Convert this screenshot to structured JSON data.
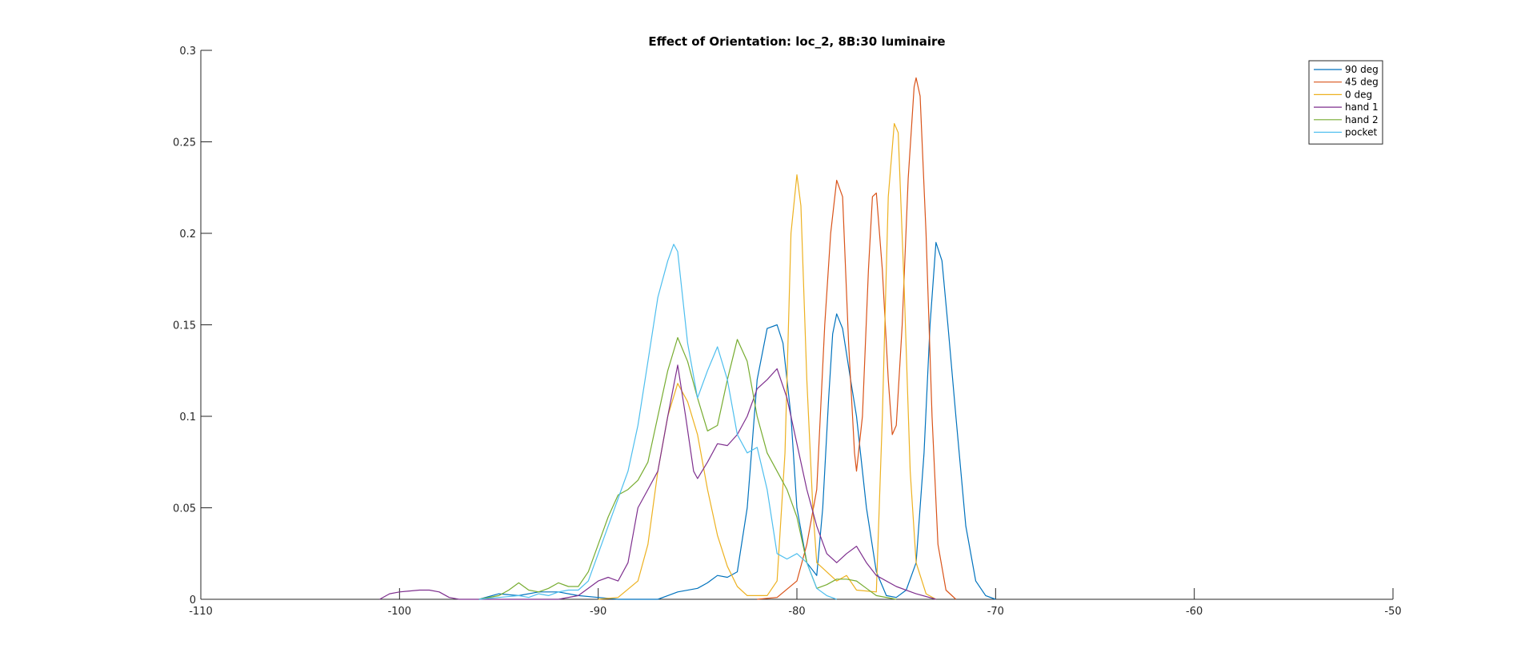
{
  "chart_data": {
    "type": "line",
    "title": "Effect of Orientation: loc_2, 8B:30 luminaire",
    "xlabel": "",
    "ylabel": "",
    "xlim": [
      -110,
      -50
    ],
    "ylim": [
      0,
      0.3
    ],
    "xticks": [
      -110,
      -100,
      -90,
      -80,
      -70,
      -60,
      -50
    ],
    "yticks": [
      0,
      0.05,
      0.1,
      0.15,
      0.2,
      0.25,
      0.3
    ],
    "xtick_labels": [
      "-110",
      "-100",
      "-90",
      "-80",
      "-70",
      "-60",
      "-50"
    ],
    "ytick_labels": [
      "0",
      "0.05",
      "0.1",
      "0.15",
      "0.2",
      "0.25",
      "0.3"
    ],
    "grid": false,
    "legend_position": "top-right",
    "series": [
      {
        "name": "90 deg",
        "color": "#0072BD",
        "points": [
          [
            -96,
            0
          ],
          [
            -95,
            0.003
          ],
          [
            -94,
            0.002
          ],
          [
            -93,
            0.004
          ],
          [
            -92,
            0.004
          ],
          [
            -91,
            0.002
          ],
          [
            -90,
            0.001
          ],
          [
            -89,
            0
          ],
          [
            -88,
            0
          ],
          [
            -87,
            0
          ],
          [
            -86.5,
            0.002
          ],
          [
            -86,
            0.004
          ],
          [
            -85,
            0.006
          ],
          [
            -84.5,
            0.009
          ],
          [
            -84,
            0.013
          ],
          [
            -83.5,
            0.012
          ],
          [
            -83,
            0.015
          ],
          [
            -82.5,
            0.05
          ],
          [
            -82,
            0.12
          ],
          [
            -81.5,
            0.148
          ],
          [
            -81,
            0.15
          ],
          [
            -80.7,
            0.14
          ],
          [
            -80.3,
            0.1
          ],
          [
            -80,
            0.05
          ],
          [
            -79.5,
            0.02
          ],
          [
            -79,
            0.013
          ],
          [
            -78.7,
            0.05
          ],
          [
            -78.4,
            0.11
          ],
          [
            -78.2,
            0.145
          ],
          [
            -78,
            0.156
          ],
          [
            -77.7,
            0.148
          ],
          [
            -77.3,
            0.12
          ],
          [
            -77,
            0.1
          ],
          [
            -76.5,
            0.05
          ],
          [
            -76,
            0.015
          ],
          [
            -75.5,
            0.002
          ],
          [
            -75,
            0.001
          ],
          [
            -74.5,
            0.005
          ],
          [
            -74,
            0.02
          ],
          [
            -73.6,
            0.08
          ],
          [
            -73.3,
            0.15
          ],
          [
            -73,
            0.195
          ],
          [
            -72.7,
            0.185
          ],
          [
            -72.4,
            0.15
          ],
          [
            -72,
            0.1
          ],
          [
            -71.5,
            0.04
          ],
          [
            -71,
            0.01
          ],
          [
            -70.5,
            0.002
          ],
          [
            -70,
            0
          ]
        ]
      },
      {
        "name": "45 deg",
        "color": "#D95319",
        "points": [
          [
            -82,
            0
          ],
          [
            -81,
            0.001
          ],
          [
            -80,
            0.01
          ],
          [
            -79.5,
            0.03
          ],
          [
            -79,
            0.06
          ],
          [
            -78.6,
            0.15
          ],
          [
            -78.3,
            0.2
          ],
          [
            -78,
            0.229
          ],
          [
            -77.7,
            0.22
          ],
          [
            -77.4,
            0.14
          ],
          [
            -77.1,
            0.08
          ],
          [
            -77,
            0.07
          ],
          [
            -76.7,
            0.1
          ],
          [
            -76.4,
            0.18
          ],
          [
            -76.2,
            0.22
          ],
          [
            -76,
            0.222
          ],
          [
            -75.7,
            0.18
          ],
          [
            -75.4,
            0.12
          ],
          [
            -75.2,
            0.09
          ],
          [
            -75,
            0.095
          ],
          [
            -74.7,
            0.15
          ],
          [
            -74.4,
            0.23
          ],
          [
            -74.1,
            0.28
          ],
          [
            -74,
            0.285
          ],
          [
            -73.8,
            0.275
          ],
          [
            -73.5,
            0.2
          ],
          [
            -73.2,
            0.1
          ],
          [
            -72.9,
            0.03
          ],
          [
            -72.5,
            0.005
          ],
          [
            -72,
            0
          ]
        ]
      },
      {
        "name": "0 deg",
        "color": "#EDB120",
        "points": [
          [
            -90,
            0
          ],
          [
            -89,
            0.001
          ],
          [
            -88,
            0.01
          ],
          [
            -87.5,
            0.03
          ],
          [
            -87,
            0.07
          ],
          [
            -86.5,
            0.1
          ],
          [
            -86,
            0.118
          ],
          [
            -85.5,
            0.108
          ],
          [
            -85,
            0.09
          ],
          [
            -84.5,
            0.06
          ],
          [
            -84,
            0.035
          ],
          [
            -83.5,
            0.018
          ],
          [
            -83,
            0.007
          ],
          [
            -82.5,
            0.002
          ],
          [
            -81.5,
            0.002
          ],
          [
            -81,
            0.01
          ],
          [
            -80.6,
            0.08
          ],
          [
            -80.3,
            0.2
          ],
          [
            -80,
            0.232
          ],
          [
            -79.8,
            0.215
          ],
          [
            -79.5,
            0.12
          ],
          [
            -79.2,
            0.05
          ],
          [
            -79,
            0.02
          ],
          [
            -78,
            0.01
          ],
          [
            -77.5,
            0.013
          ],
          [
            -77,
            0.005
          ],
          [
            -76,
            0.004
          ],
          [
            -75.7,
            0.1
          ],
          [
            -75.4,
            0.22
          ],
          [
            -75.1,
            0.26
          ],
          [
            -74.9,
            0.255
          ],
          [
            -74.6,
            0.17
          ],
          [
            -74.3,
            0.07
          ],
          [
            -74,
            0.02
          ],
          [
            -73.5,
            0.003
          ],
          [
            -73,
            0
          ]
        ]
      },
      {
        "name": "hand 1",
        "color": "#7E2F8E",
        "points": [
          [
            -101,
            0
          ],
          [
            -100.5,
            0.003
          ],
          [
            -100,
            0.004
          ],
          [
            -99,
            0.005
          ],
          [
            -98.5,
            0.005
          ],
          [
            -98,
            0.004
          ],
          [
            -97.5,
            0.001
          ],
          [
            -97,
            0
          ],
          [
            -92,
            0
          ],
          [
            -91,
            0.002
          ],
          [
            -90,
            0.01
          ],
          [
            -89.5,
            0.012
          ],
          [
            -89,
            0.01
          ],
          [
            -88.5,
            0.02
          ],
          [
            -88,
            0.05
          ],
          [
            -87.5,
            0.06
          ],
          [
            -87,
            0.07
          ],
          [
            -86.5,
            0.1
          ],
          [
            -86,
            0.128
          ],
          [
            -85.6,
            0.1
          ],
          [
            -85.2,
            0.07
          ],
          [
            -85,
            0.066
          ],
          [
            -84.5,
            0.075
          ],
          [
            -84,
            0.085
          ],
          [
            -83.5,
            0.084
          ],
          [
            -83,
            0.09
          ],
          [
            -82.5,
            0.1
          ],
          [
            -82,
            0.115
          ],
          [
            -81.5,
            0.12
          ],
          [
            -81,
            0.126
          ],
          [
            -80.5,
            0.11
          ],
          [
            -80,
            0.085
          ],
          [
            -79.5,
            0.06
          ],
          [
            -79,
            0.04
          ],
          [
            -78.5,
            0.025
          ],
          [
            -78,
            0.02
          ],
          [
            -77.5,
            0.025
          ],
          [
            -77,
            0.029
          ],
          [
            -76.5,
            0.02
          ],
          [
            -76,
            0.013
          ],
          [
            -75,
            0.007
          ],
          [
            -74,
            0.003
          ],
          [
            -73,
            0
          ]
        ]
      },
      {
        "name": "hand 2",
        "color": "#77AC30",
        "points": [
          [
            -96,
            0
          ],
          [
            -95,
            0.002
          ],
          [
            -94.5,
            0.005
          ],
          [
            -94,
            0.009
          ],
          [
            -93.5,
            0.005
          ],
          [
            -93,
            0.004
          ],
          [
            -92.5,
            0.006
          ],
          [
            -92,
            0.009
          ],
          [
            -91.5,
            0.007
          ],
          [
            -91,
            0.007
          ],
          [
            -90.5,
            0.015
          ],
          [
            -90,
            0.03
          ],
          [
            -89.5,
            0.045
          ],
          [
            -89,
            0.057
          ],
          [
            -88.5,
            0.06
          ],
          [
            -88,
            0.065
          ],
          [
            -87.5,
            0.075
          ],
          [
            -87,
            0.1
          ],
          [
            -86.5,
            0.125
          ],
          [
            -86,
            0.143
          ],
          [
            -85.5,
            0.13
          ],
          [
            -85,
            0.11
          ],
          [
            -84.5,
            0.092
          ],
          [
            -84,
            0.095
          ],
          [
            -83.5,
            0.12
          ],
          [
            -83,
            0.142
          ],
          [
            -82.5,
            0.13
          ],
          [
            -82,
            0.1
          ],
          [
            -81.5,
            0.08
          ],
          [
            -81,
            0.07
          ],
          [
            -80.5,
            0.06
          ],
          [
            -80,
            0.045
          ],
          [
            -79.5,
            0.02
          ],
          [
            -79,
            0.006
          ],
          [
            -78.5,
            0.008
          ],
          [
            -78,
            0.011
          ],
          [
            -77.5,
            0.011
          ],
          [
            -77,
            0.01
          ],
          [
            -76.5,
            0.006
          ],
          [
            -76,
            0.002
          ],
          [
            -75,
            0
          ]
        ]
      },
      {
        "name": "pocket",
        "color": "#4DBEEE",
        "points": [
          [
            -96,
            0
          ],
          [
            -95,
            0.001
          ],
          [
            -94,
            0.002
          ],
          [
            -93.5,
            0.001
          ],
          [
            -93,
            0.003
          ],
          [
            -92.5,
            0.002
          ],
          [
            -92,
            0.004
          ],
          [
            -91.5,
            0.005
          ],
          [
            -91,
            0.005
          ],
          [
            -90.5,
            0.01
          ],
          [
            -90,
            0.025
          ],
          [
            -89.5,
            0.04
          ],
          [
            -89,
            0.055
          ],
          [
            -88.5,
            0.07
          ],
          [
            -88,
            0.095
          ],
          [
            -87.5,
            0.13
          ],
          [
            -87,
            0.165
          ],
          [
            -86.5,
            0.185
          ],
          [
            -86.2,
            0.194
          ],
          [
            -86,
            0.19
          ],
          [
            -85.5,
            0.14
          ],
          [
            -85,
            0.11
          ],
          [
            -84.5,
            0.125
          ],
          [
            -84,
            0.138
          ],
          [
            -83.5,
            0.12
          ],
          [
            -83,
            0.09
          ],
          [
            -82.5,
            0.08
          ],
          [
            -82,
            0.083
          ],
          [
            -81.5,
            0.06
          ],
          [
            -81,
            0.025
          ],
          [
            -80.5,
            0.022
          ],
          [
            -80,
            0.025
          ],
          [
            -79.5,
            0.02
          ],
          [
            -79,
            0.006
          ],
          [
            -78.5,
            0.002
          ],
          [
            -78,
            0
          ]
        ]
      }
    ]
  }
}
